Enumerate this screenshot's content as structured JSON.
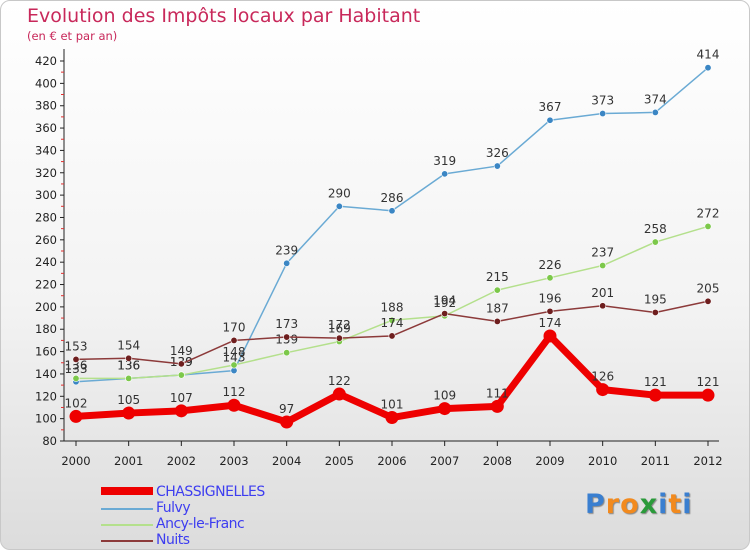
{
  "title": "Evolution des Impôts locaux par Habitant",
  "subtitle": "(en € et par an)",
  "chart_data": {
    "type": "line",
    "x": [
      "2000",
      "2001",
      "2002",
      "2003",
      "2004",
      "2005",
      "2006",
      "2007",
      "2008",
      "2009",
      "2010",
      "2011",
      "2012"
    ],
    "ylim": [
      80,
      420
    ],
    "yticks": [
      80,
      100,
      120,
      140,
      160,
      180,
      200,
      220,
      240,
      260,
      280,
      300,
      320,
      340,
      360,
      380,
      400,
      420
    ],
    "grid": false,
    "legend": "bottom-left",
    "series": [
      {
        "name": "Fulvy",
        "color": "#6aaad4",
        "marker": "#3b86c4",
        "width": 1.5,
        "values": [
          133,
          136,
          139,
          143,
          239,
          290,
          286,
          319,
          326,
          367,
          373,
          374,
          414
        ]
      },
      {
        "name": "Ancy-le-Franc",
        "color": "#b4e08c",
        "marker": "#7cc84a",
        "width": 1.5,
        "values": [
          136,
          136,
          139,
          148,
          159,
          169,
          188,
          192,
          215,
          226,
          237,
          258,
          272
        ]
      },
      {
        "name": "Nuits",
        "color": "#8c3a3a",
        "marker": "#6e1e1e",
        "width": 1.5,
        "values": [
          153,
          154,
          149,
          170,
          173,
          172,
          174,
          194,
          187,
          196,
          201,
          195,
          205
        ]
      },
      {
        "name": "CHASSIGNELLES",
        "color": "#ee0000",
        "marker": "#ee0000",
        "width": 7,
        "values": [
          102,
          105,
          107,
          112,
          97,
          122,
          101,
          109,
          111,
          174,
          126,
          121,
          121
        ]
      }
    ]
  },
  "legend": {
    "items": [
      {
        "label": "CHASSIGNELLES",
        "color": "#ee0000"
      },
      {
        "label": "Fulvy",
        "color": "#6aaad4"
      },
      {
        "label": "Ancy-le-Franc",
        "color": "#b4e08c"
      },
      {
        "label": "Nuits",
        "color": "#8c3a3a"
      }
    ]
  },
  "logo": {
    "letters": [
      "P",
      "r",
      "o",
      "x",
      "i",
      "t",
      "i"
    ],
    "colors": [
      "#3a7fd0",
      "#f28a1e",
      "#f28a1e",
      "#2a9a3a",
      "#3a7fd0",
      "#f28a1e",
      "#3a7fd0"
    ]
  }
}
